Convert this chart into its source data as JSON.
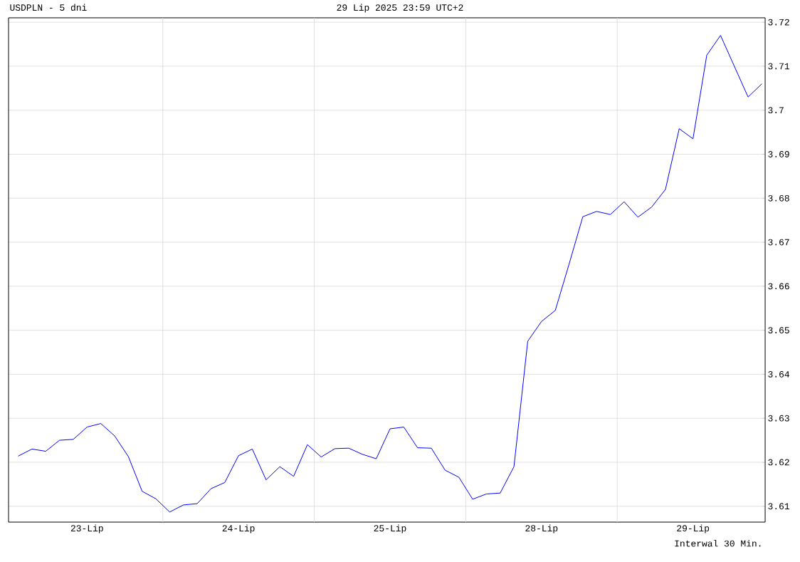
{
  "chart_data": {
    "type": "line",
    "title": "USDPLN - 5 dni",
    "subtitle": "29 Lip 2025 23:59 UTC+2",
    "annotations": [
      "Interwal 30 Min."
    ],
    "color": "#0000ff",
    "categories": [
      null,
      null,
      null,
      null,
      null,
      "23-Lip",
      null,
      null,
      null,
      null,
      null,
      null,
      null,
      null,
      null,
      null,
      "24-Lip",
      null,
      null,
      null,
      null,
      null,
      null,
      null,
      null,
      null,
      null,
      "25-Lip",
      null,
      null,
      null,
      null,
      null,
      null,
      null,
      null,
      null,
      null,
      "28-Lip",
      null,
      null,
      null,
      null,
      null,
      null,
      null,
      null,
      null,
      null,
      "29-Lip",
      null,
      null,
      null,
      null,
      null
    ],
    "values": [
      3.6214,
      3.623,
      3.6225,
      3.625,
      3.6252,
      3.628,
      3.6288,
      3.626,
      3.6213,
      3.6134,
      3.6117,
      3.6087,
      3.6103,
      3.6106,
      3.614,
      3.6154,
      3.6215,
      3.623,
      3.616,
      3.619,
      3.6168,
      3.624,
      3.6212,
      3.6231,
      3.6232,
      3.6218,
      3.6208,
      3.6276,
      3.628,
      3.6233,
      3.6232,
      3.6182,
      3.6166,
      3.6116,
      3.6128,
      3.613,
      3.619,
      3.6475,
      3.652,
      3.6545,
      3.665,
      3.6758,
      3.677,
      3.6763,
      3.6792,
      3.6757,
      3.678,
      3.682,
      3.6958,
      3.6935,
      3.7125,
      3.717,
      3.71,
      3.703,
      3.706
    ],
    "ylim": [
      3.6064,
      3.721
    ],
    "yticks": [
      3.61,
      3.62,
      3.63,
      3.64,
      3.65,
      3.66,
      3.67,
      3.68,
      3.69,
      3.7,
      3.71,
      3.72
    ],
    "grid": true
  }
}
